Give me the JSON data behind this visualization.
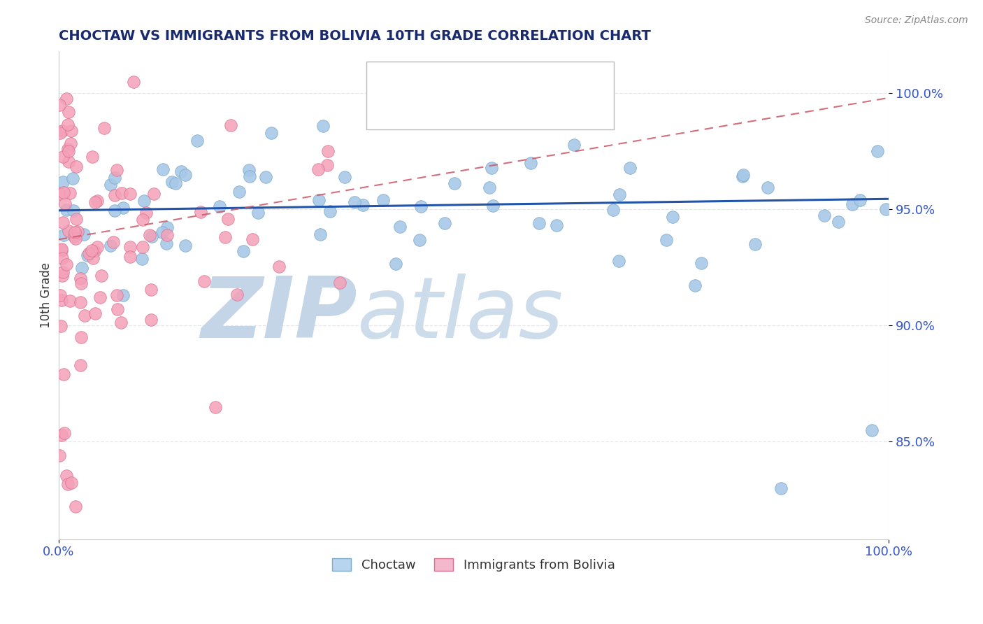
{
  "title": "CHOCTAW VS IMMIGRANTS FROM BOLIVIA 10TH GRADE CORRELATION CHART",
  "source_text": "Source: ZipAtlas.com",
  "ylabel": "10th Grade",
  "x_min": 0.0,
  "x_max": 1.0,
  "y_min": 0.808,
  "y_max": 1.018,
  "y_ticks": [
    0.85,
    0.9,
    0.95,
    1.0
  ],
  "y_tick_labels": [
    "85.0%",
    "90.0%",
    "95.0%",
    "100.0%"
  ],
  "series1_color": "#a8c8e8",
  "series1_edge": "#7baac8",
  "series2_color": "#f4a0b8",
  "series2_edge": "#d87090",
  "trend1_color": "#2255aa",
  "trend2_color": "#cc5566",
  "watermark_zip": "ZIP",
  "watermark_atlas": "atlas",
  "watermark_color_zip": "#c8d8ec",
  "watermark_color_atlas": "#b8cce0",
  "legend_box1_face": "#b8d4ee",
  "legend_box1_edge": "#7baac8",
  "legend_box2_face": "#f4b8cc",
  "legend_box2_edge": "#d87090",
  "legend_text_color": "#3355cc",
  "title_color": "#1a2a6e",
  "tick_color": "#3355cc",
  "grid_color": "#e0e8f0",
  "bottom_axis_color": "#cccccc",
  "trend1_y0": 0.9495,
  "trend1_y1": 0.9545,
  "trend2_y0": 0.937,
  "trend2_y1": 0.998
}
